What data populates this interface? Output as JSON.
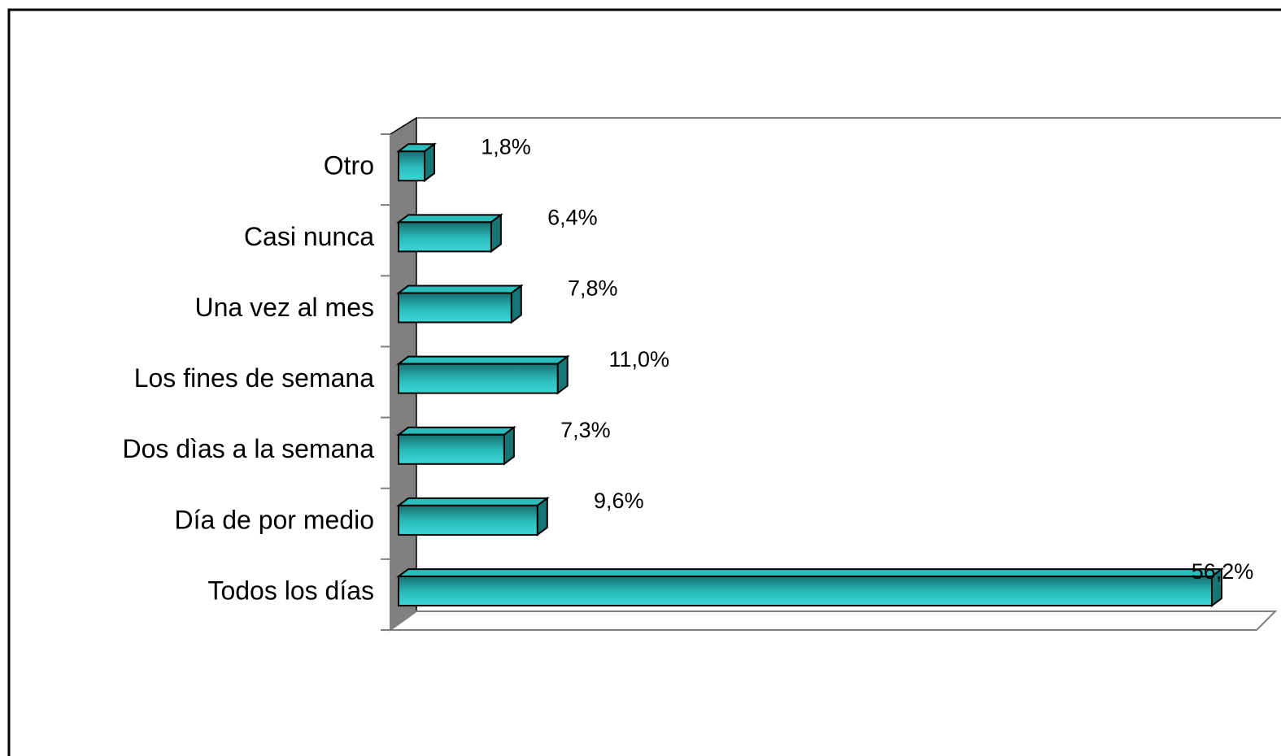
{
  "chart_data": {
    "type": "bar",
    "orientation": "horizontal",
    "categories": [
      "Otro",
      "Casi nunca",
      "Una vez al mes",
      "Los fines de semana",
      "Dos dìas a la semana",
      "Día de por medio",
      "Todos los días"
    ],
    "values": [
      1.8,
      6.4,
      7.8,
      11.0,
      7.3,
      9.6,
      56.2
    ],
    "value_labels": [
      "1,8%",
      "6,4%",
      "7,8%",
      "11,0%",
      "7,3%",
      "9,6%",
      "56,2%"
    ],
    "color": "#2bbcbc"
  }
}
